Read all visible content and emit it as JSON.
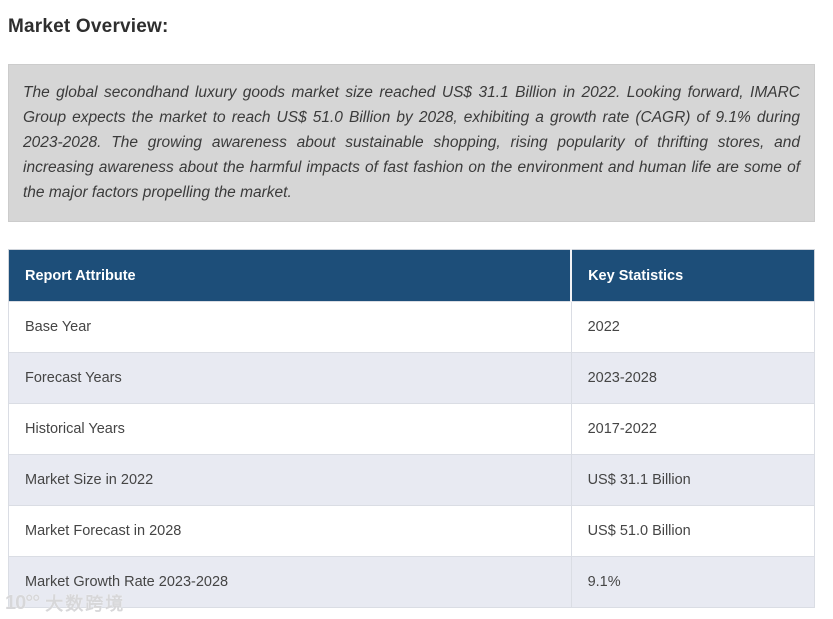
{
  "page": {
    "title": "Market Overview:"
  },
  "overview": {
    "paragraph": "The global secondhand luxury goods market size reached US$ 31.1 Billion in 2022. Looking forward, IMARC Group expects the market to reach US$ 51.0 Billion by 2028, exhibiting a growth rate (CAGR) of 9.1% during 2023-2028. The growing awareness about sustainable shopping, rising popularity of thrifting stores, and increasing awareness about the harmful impacts of fast fashion on the environment and human life are some of the major factors propelling the market."
  },
  "table": {
    "headers": [
      "Report Attribute",
      "Key Statistics"
    ],
    "rows": [
      {
        "attribute": "Base Year",
        "value": "2022"
      },
      {
        "attribute": "Forecast Years",
        "value": "2023-2028"
      },
      {
        "attribute": "Historical Years",
        "value": "2017-2022"
      },
      {
        "attribute": "Market Size in 2022",
        "value": "US$ 31.1 Billion"
      },
      {
        "attribute": "Market Forecast in 2028",
        "value": "US$ 51.0 Billion"
      },
      {
        "attribute": "Market Growth Rate 2023-2028",
        "value": "9.1%"
      }
    ]
  },
  "watermark": {
    "logo": "10°°",
    "text": "大数跨境"
  },
  "colors": {
    "header_bg": "#1d4e79",
    "row_alt_bg": "#e8eaf2",
    "note_bg": "#d6d6d6"
  }
}
